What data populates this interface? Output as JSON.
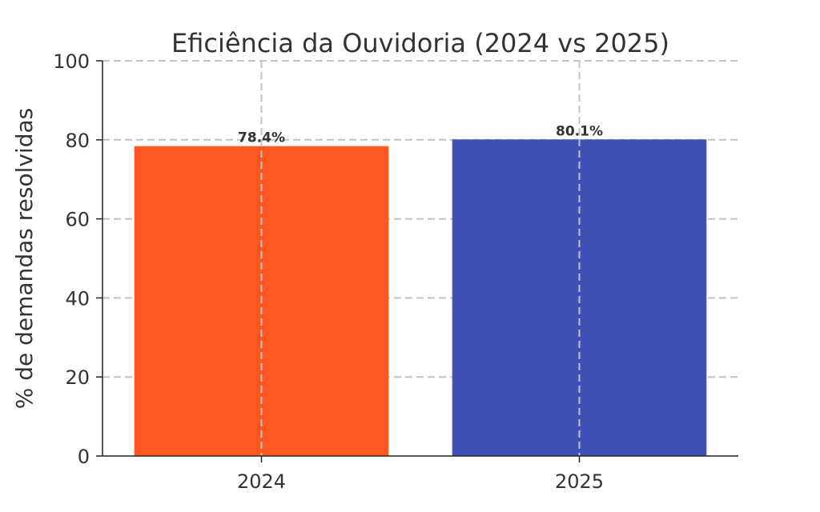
{
  "chart_data": {
    "type": "bar",
    "title": "Eficiência da Ouvidoria (2024 vs 2025)",
    "xlabel": "",
    "ylabel": "% de demandas resolvidas",
    "categories": [
      "2024",
      "2025"
    ],
    "values": [
      78.4,
      80.1
    ],
    "data_labels": [
      "78.4%",
      "80.1%"
    ],
    "bar_colors": [
      "#FF5722",
      "#3F51B5"
    ],
    "ylim": [
      0,
      100
    ],
    "yticks": [
      0,
      20,
      40,
      60,
      80,
      100
    ],
    "grid": true,
    "grid_style": "dashed",
    "legend": "none"
  }
}
